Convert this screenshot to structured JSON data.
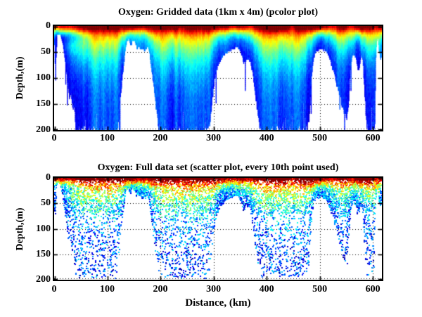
{
  "figure": {
    "background": "#ffffff",
    "axis_color": "#000000",
    "no_data_color": "#ffffff",
    "colormap": "jet",
    "grid_style": "dotted"
  },
  "chart_data": [
    {
      "type": "heatmap",
      "title": "Oxygen: Gridded data (1km x 4m) (pcolor plot)",
      "xlabel": "",
      "ylabel": "Depth,(m)",
      "x_ticks": [
        0,
        100,
        200,
        300,
        400,
        500,
        600
      ],
      "y_ticks": [
        0,
        50,
        100,
        150,
        200
      ],
      "x_range_km": [
        0,
        617
      ],
      "y_range_m": [
        0,
        200
      ],
      "cell_size": {
        "x_km": 1,
        "y_m": 4
      },
      "grid": "dotted-black",
      "colormap": "jet",
      "value_semantics": "relative oxygen: ~1 = dark red (surface maximum), ~0.2 = blue (deep minimum), white = no data below seafloor",
      "max_depth_profile_km_m": [
        [
          0,
          35
        ],
        [
          1,
          70
        ],
        [
          2,
          100
        ],
        [
          3,
          60
        ],
        [
          5,
          16
        ],
        [
          9,
          14
        ],
        [
          13,
          22
        ],
        [
          16,
          38
        ],
        [
          20,
          70
        ],
        [
          24,
          100
        ],
        [
          28,
          140
        ],
        [
          31,
          125
        ],
        [
          34,
          160
        ],
        [
          37,
          150
        ],
        [
          40,
          200
        ],
        [
          50,
          200
        ],
        [
          60,
          200
        ],
        [
          70,
          200
        ],
        [
          80,
          200
        ],
        [
          90,
          200
        ],
        [
          100,
          200
        ],
        [
          110,
          200
        ],
        [
          118,
          200
        ],
        [
          122,
          165
        ],
        [
          126,
          115
        ],
        [
          130,
          75
        ],
        [
          133,
          48
        ],
        [
          136,
          30
        ],
        [
          140,
          24
        ],
        [
          144,
          38
        ],
        [
          147,
          26
        ],
        [
          151,
          30
        ],
        [
          155,
          42
        ],
        [
          159,
          38
        ],
        [
          163,
          44
        ],
        [
          167,
          46
        ],
        [
          170,
          48
        ],
        [
          173,
          42
        ],
        [
          176,
          38
        ],
        [
          179,
          55
        ],
        [
          183,
          85
        ],
        [
          187,
          120
        ],
        [
          191,
          158
        ],
        [
          195,
          185
        ],
        [
          199,
          200
        ],
        [
          210,
          200
        ],
        [
          230,
          200
        ],
        [
          250,
          200
        ],
        [
          270,
          200
        ],
        [
          285,
          200
        ],
        [
          292,
          195
        ],
        [
          296,
          150
        ],
        [
          300,
          112
        ],
        [
          304,
          88
        ],
        [
          308,
          74
        ],
        [
          313,
          64
        ],
        [
          318,
          56
        ],
        [
          324,
          50
        ],
        [
          330,
          47
        ],
        [
          336,
          44
        ],
        [
          341,
          41
        ],
        [
          345,
          40
        ],
        [
          349,
          47
        ],
        [
          353,
          57
        ],
        [
          356,
          72
        ],
        [
          360,
          67
        ],
        [
          364,
          62
        ],
        [
          368,
          66
        ],
        [
          372,
          85
        ],
        [
          376,
          112
        ],
        [
          380,
          148
        ],
        [
          384,
          178
        ],
        [
          388,
          200
        ],
        [
          400,
          200
        ],
        [
          412,
          200
        ],
        [
          424,
          200
        ],
        [
          436,
          200
        ],
        [
          448,
          200
        ],
        [
          460,
          200
        ],
        [
          470,
          200
        ],
        [
          476,
          196
        ],
        [
          479,
          188
        ],
        [
          482,
          130
        ],
        [
          485,
          85
        ],
        [
          488,
          60
        ],
        [
          492,
          48
        ],
        [
          497,
          45
        ],
        [
          503,
          44
        ],
        [
          509,
          46
        ],
        [
          514,
          52
        ],
        [
          518,
          62
        ],
        [
          523,
          80
        ],
        [
          528,
          98
        ],
        [
          533,
          118
        ],
        [
          538,
          140
        ],
        [
          543,
          158
        ],
        [
          547,
          168
        ],
        [
          550,
          176
        ],
        [
          552,
          170
        ],
        [
          554,
          142
        ],
        [
          556,
          102
        ],
        [
          558,
          74
        ],
        [
          560,
          60
        ],
        [
          563,
          54
        ],
        [
          566,
          58
        ],
        [
          569,
          70
        ],
        [
          572,
          88
        ],
        [
          575,
          70
        ],
        [
          577,
          58
        ],
        [
          580,
          62
        ],
        [
          582,
          95
        ],
        [
          584,
          135
        ],
        [
          586,
          168
        ],
        [
          588,
          190
        ],
        [
          591,
          200
        ],
        [
          597,
          200
        ],
        [
          601,
          198
        ],
        [
          603,
          185
        ],
        [
          605,
          60
        ],
        [
          607,
          26
        ],
        [
          609,
          22
        ],
        [
          611,
          48
        ],
        [
          613,
          60
        ],
        [
          615,
          62
        ],
        [
          617,
          55
        ]
      ],
      "field_model": {
        "deep_value": 0.17,
        "surface_amplitude": 0.62,
        "oxycline_base_m": 6,
        "oxycline_scale_m": 55,
        "oxycline_exponent": 1.05,
        "profile_exponent": 1.25,
        "surface_boost": {
          "base": 0.12,
          "patch": 0.3,
          "depth_scale_m": 12,
          "exponent": 1.8
        },
        "cold_tongue": {
          "center_km": 30,
          "sigma_km": 26,
          "center_depth_m": 20,
          "sigma_m": 13,
          "strength": 0.22
        },
        "smoothing_window_km": 12,
        "column_noise": 0.07,
        "cell_noise": 0.07,
        "bottom_slit_probability": 0.07,
        "bottom_spike_probability": 0.06,
        "extra_slit_zone_km": [
          415,
          452
        ],
        "seed": 13
      }
    },
    {
      "type": "scatter",
      "title": "Oxygen: Full data set (scatter plot, every 10th point used)",
      "xlabel": "Distance, (km)",
      "ylabel": "Depth,(m)",
      "x_ticks": [
        0,
        100,
        200,
        300,
        400,
        500,
        600
      ],
      "y_ticks": [
        0,
        50,
        100,
        150,
        200
      ],
      "x_range_km": [
        0,
        617
      ],
      "y_range_m": [
        0,
        200
      ],
      "grid": "dotted-black",
      "colormap": "jet",
      "envelope": "same max_depth_profile_km_m as chart 0",
      "points": {
        "n": 9000,
        "surface_n": 800,
        "marker_px": 2,
        "color_noise": 0.16,
        "max_depth_margin_m": 6,
        "seed": 99
      }
    }
  ]
}
